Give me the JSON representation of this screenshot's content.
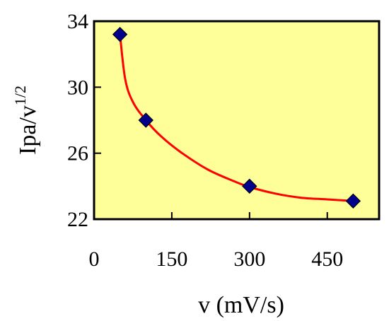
{
  "chart_data": {
    "type": "scatter",
    "x": [
      50,
      100,
      300,
      500
    ],
    "y": [
      33.2,
      28.0,
      24.0,
      23.1
    ],
    "fit_curve": {
      "x": [
        50,
        60,
        75,
        100,
        130,
        170,
        220,
        270,
        300,
        350,
        400,
        450,
        500
      ],
      "y": [
        33.2,
        30.5,
        29.1,
        28.0,
        27.0,
        26.0,
        25.0,
        24.3,
        23.95,
        23.55,
        23.3,
        23.2,
        23.1
      ]
    },
    "xlabel": "v (mV/s)",
    "ylabel": {
      "base": "Ipa/v",
      "sup": "1/2"
    },
    "xlim": [
      0,
      550
    ],
    "ylim": [
      22,
      34
    ],
    "xticks": [
      0,
      150,
      300,
      450
    ],
    "yticks": [
      22,
      26,
      30,
      34
    ],
    "grid": false,
    "colors": {
      "plot_background": "#ffff99",
      "curve": "#ff0000",
      "marker": "#00008b",
      "frame": "#000000"
    },
    "marker": "diamond"
  }
}
